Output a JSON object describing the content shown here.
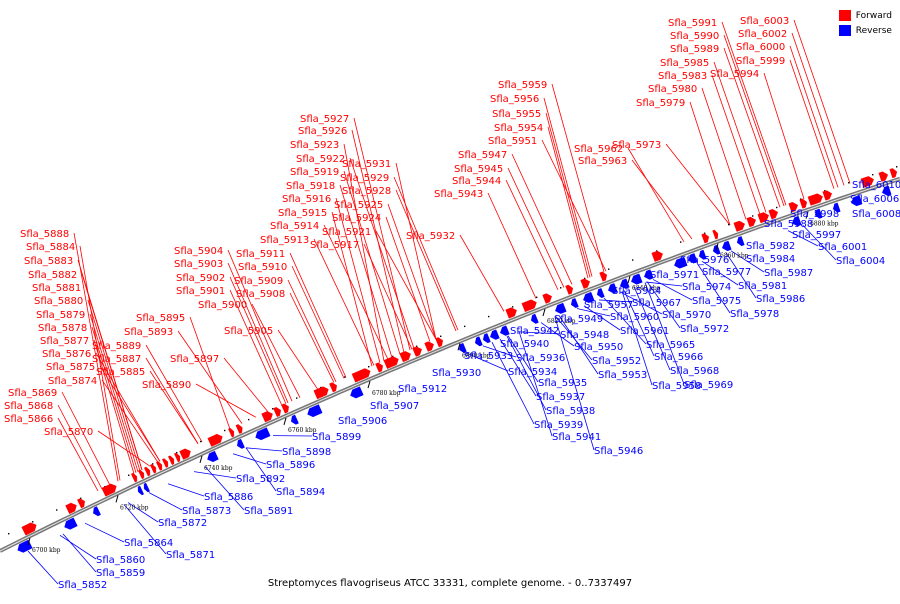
{
  "legend": {
    "forward": {
      "label": "Forward",
      "color": "#ff0000"
    },
    "reverse": {
      "label": "Reverse",
      "color": "#0000ff"
    }
  },
  "caption": "Streptomyces flavogriseus ATCC 33331, complete genome. - 0..7337497",
  "ticks": [
    "6700 kbp",
    "6720 kbp",
    "6740 kbp",
    "6760 kbp",
    "6780 kbp",
    "6800 kbp",
    "6820 kbp",
    "6840 kbp",
    "6860 kbp",
    "6880 kbp"
  ],
  "forward_genes": [
    "Sfla_5866",
    "Sfla_5868",
    "Sfla_5869",
    "Sfla_5870",
    "Sfla_5874",
    "Sfla_5875",
    "Sfla_5876",
    "Sfla_5877",
    "Sfla_5878",
    "Sfla_5879",
    "Sfla_5880",
    "Sfla_5881",
    "Sfla_5882",
    "Sfla_5883",
    "Sfla_5884",
    "Sfla_5888",
    "Sfla_5885",
    "Sfla_5887",
    "Sfla_5889",
    "Sfla_5890",
    "Sfla_5893",
    "Sfla_5895",
    "Sfla_5897",
    "Sfla_5900",
    "Sfla_5901",
    "Sfla_5902",
    "Sfla_5903",
    "Sfla_5904",
    "Sfla_5905",
    "Sfla_5908",
    "Sfla_5909",
    "Sfla_5910",
    "Sfla_5911",
    "Sfla_5913",
    "Sfla_5914",
    "Sfla_5915",
    "Sfla_5916",
    "Sfla_5917",
    "Sfla_5918",
    "Sfla_5919",
    "Sfla_5921",
    "Sfla_5922",
    "Sfla_5923",
    "Sfla_5924",
    "Sfla_5925",
    "Sfla_5926",
    "Sfla_5927",
    "Sfla_5928",
    "Sfla_5929",
    "Sfla_5931",
    "Sfla_5932",
    "Sfla_5943",
    "Sfla_5944",
    "Sfla_5945",
    "Sfla_5947",
    "Sfla_5951",
    "Sfla_5954",
    "Sfla_5955",
    "Sfla_5956",
    "Sfla_5959",
    "Sfla_5962",
    "Sfla_5963",
    "Sfla_5973",
    "Sfla_5979",
    "Sfla_5980",
    "Sfla_5983",
    "Sfla_5985",
    "Sfla_5989",
    "Sfla_5990",
    "Sfla_5991",
    "Sfla_5994",
    "Sfla_5999",
    "Sfla_6000",
    "Sfla_6002",
    "Sfla_6003"
  ],
  "reverse_genes": [
    "Sfla_5852",
    "Sfla_5859",
    "Sfla_5860",
    "Sfla_5864",
    "Sfla_5871",
    "Sfla_5872",
    "Sfla_5873",
    "Sfla_5886",
    "Sfla_5891",
    "Sfla_5892",
    "Sfla_5894",
    "Sfla_5896",
    "Sfla_5898",
    "Sfla_5899",
    "Sfla_5906",
    "Sfla_5907",
    "Sfla_5912",
    "Sfla_5930",
    "Sfla_5933",
    "Sfla_5934",
    "Sfla_5935",
    "Sfla_5936",
    "Sfla_5937",
    "Sfla_5938",
    "Sfla_5939",
    "Sfla_5940",
    "Sfla_5941",
    "Sfla_5942",
    "Sfla_5946",
    "Sfla_5948",
    "Sfla_5949",
    "Sfla_5950",
    "Sfla_5952",
    "Sfla_5953",
    "Sfla_5957",
    "Sfla_5958",
    "Sfla_5960",
    "Sfla_5961",
    "Sfla_5964",
    "Sfla_5965",
    "Sfla_5966",
    "Sfla_5967",
    "Sfla_5968",
    "Sfla_5969",
    "Sfla_5970",
    "Sfla_5971",
    "Sfla_5972",
    "Sfla_5974",
    "Sfla_5975",
    "Sfla_5976",
    "Sfla_5977",
    "Sfla_5978",
    "Sfla_5981",
    "Sfla_5982",
    "Sfla_5984",
    "Sfla_5986",
    "Sfla_5987",
    "Sfla_5988",
    "Sfla_5997",
    "Sfla_5998",
    "Sfla_6001",
    "Sfla_6004",
    "Sfla_6006",
    "Sfla_6008",
    "Sfla_6010"
  ]
}
